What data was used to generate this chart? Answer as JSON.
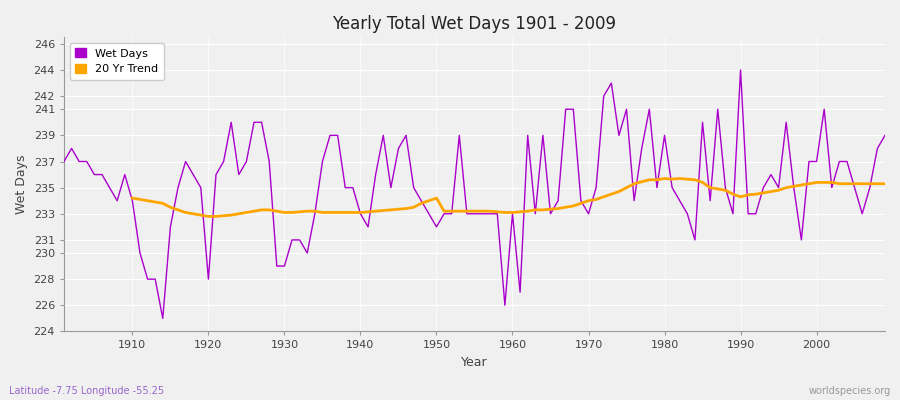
{
  "title": "Yearly Total Wet Days 1901 - 2009",
  "xlabel": "Year",
  "ylabel": "Wet Days",
  "subtitle": "Latitude -7.75 Longitude -55.25",
  "watermark": "worldspecies.org",
  "ylim": [
    224,
    246.5
  ],
  "bg_color": "#f0f0f0",
  "wet_days_color": "#aa00cc",
  "trend_color": "#ffa500",
  "legend_wet": "Wet Days",
  "legend_trend": "20 Yr Trend",
  "ytick_positions": [
    224,
    226,
    228,
    230,
    231,
    233,
    235,
    237,
    239,
    241,
    242,
    244,
    246
  ],
  "xtick_positions": [
    1910,
    1920,
    1930,
    1940,
    1950,
    1960,
    1970,
    1980,
    1990,
    2000
  ],
  "years": [
    1901,
    1902,
    1903,
    1904,
    1905,
    1906,
    1907,
    1908,
    1909,
    1910,
    1911,
    1912,
    1913,
    1914,
    1915,
    1916,
    1917,
    1918,
    1919,
    1920,
    1921,
    1922,
    1923,
    1924,
    1925,
    1926,
    1927,
    1928,
    1929,
    1930,
    1931,
    1932,
    1933,
    1934,
    1935,
    1936,
    1937,
    1938,
    1939,
    1940,
    1941,
    1942,
    1943,
    1944,
    1945,
    1946,
    1947,
    1948,
    1949,
    1950,
    1951,
    1952,
    1953,
    1954,
    1955,
    1956,
    1957,
    1958,
    1959,
    1960,
    1961,
    1962,
    1963,
    1964,
    1965,
    1966,
    1967,
    1968,
    1969,
    1970,
    1971,
    1972,
    1973,
    1974,
    1975,
    1976,
    1977,
    1978,
    1979,
    1980,
    1981,
    1982,
    1983,
    1984,
    1985,
    1986,
    1987,
    1988,
    1989,
    1990,
    1991,
    1992,
    1993,
    1994,
    1995,
    1996,
    1997,
    1998,
    1999,
    2000,
    2001,
    2002,
    2003,
    2004,
    2005,
    2006,
    2007,
    2008,
    2009
  ],
  "wet_days": [
    237,
    238,
    237,
    237,
    236,
    236,
    235,
    234,
    236,
    234,
    230,
    228,
    228,
    225,
    232,
    235,
    237,
    236,
    235,
    228,
    236,
    237,
    240,
    236,
    237,
    240,
    240,
    237,
    229,
    229,
    231,
    231,
    230,
    233,
    237,
    239,
    239,
    235,
    235,
    233,
    232,
    236,
    239,
    235,
    238,
    239,
    235,
    234,
    233,
    232,
    233,
    233,
    239,
    233,
    233,
    233,
    233,
    233,
    226,
    233,
    227,
    239,
    233,
    239,
    233,
    234,
    241,
    241,
    234,
    233,
    235,
    242,
    243,
    239,
    241,
    234,
    238,
    241,
    235,
    239,
    235,
    234,
    233,
    231,
    240,
    234,
    241,
    235,
    233,
    244,
    233,
    233,
    235,
    236,
    235,
    240,
    235,
    231,
    237,
    237,
    241,
    235,
    237,
    237,
    235,
    233,
    235,
    238,
    239
  ],
  "trend_years": [
    1910,
    1911,
    1912,
    1913,
    1914,
    1915,
    1916,
    1917,
    1918,
    1919,
    1920,
    1921,
    1922,
    1923,
    1924,
    1925,
    1926,
    1927,
    1928,
    1929,
    1930,
    1931,
    1932,
    1933,
    1934,
    1935,
    1936,
    1937,
    1938,
    1939,
    1940,
    1941,
    1942,
    1943,
    1944,
    1945,
    1946,
    1947,
    1948,
    1949,
    1950,
    1951,
    1952,
    1953,
    1954,
    1955,
    1956,
    1957,
    1958,
    1959,
    1960,
    1961,
    1962,
    1963,
    1964,
    1965,
    1966,
    1967,
    1968,
    1969,
    1970,
    1971,
    1972,
    1973,
    1974,
    1975,
    1976,
    1977,
    1978,
    1979,
    1980,
    1981,
    1982,
    1983,
    1984,
    1985,
    1986,
    1987,
    1988,
    1989,
    1990,
    1991,
    1992,
    1993,
    1994,
    1995,
    1996,
    1997,
    1998,
    1999,
    2000,
    2001,
    2002,
    2003,
    2004,
    2005,
    2006,
    2007,
    2008,
    2009
  ],
  "trend_values": [
    234.2,
    234.1,
    234.0,
    233.9,
    233.8,
    233.5,
    233.3,
    233.1,
    233.0,
    232.9,
    232.8,
    232.8,
    232.85,
    232.9,
    233.0,
    233.1,
    233.2,
    233.3,
    233.3,
    233.2,
    233.1,
    233.1,
    233.15,
    233.2,
    233.2,
    233.1,
    233.1,
    233.1,
    233.1,
    233.1,
    233.1,
    233.15,
    233.2,
    233.25,
    233.3,
    233.35,
    233.4,
    233.5,
    233.8,
    234.0,
    234.2,
    233.2,
    233.2,
    233.2,
    233.2,
    233.2,
    233.2,
    233.2,
    233.15,
    233.1,
    233.1,
    233.15,
    233.2,
    233.3,
    233.3,
    233.35,
    233.4,
    233.5,
    233.6,
    233.8,
    234.0,
    234.1,
    234.3,
    234.5,
    234.7,
    235.0,
    235.3,
    235.45,
    235.6,
    235.6,
    235.7,
    235.65,
    235.7,
    235.65,
    235.6,
    235.4,
    235.0,
    234.9,
    234.8,
    234.5,
    234.3,
    234.45,
    234.5,
    234.6,
    234.7,
    234.8,
    235.0,
    235.1,
    235.2,
    235.3,
    235.4,
    235.4,
    235.4,
    235.3,
    235.3,
    235.3,
    235.3,
    235.3,
    235.3,
    235.3
  ]
}
